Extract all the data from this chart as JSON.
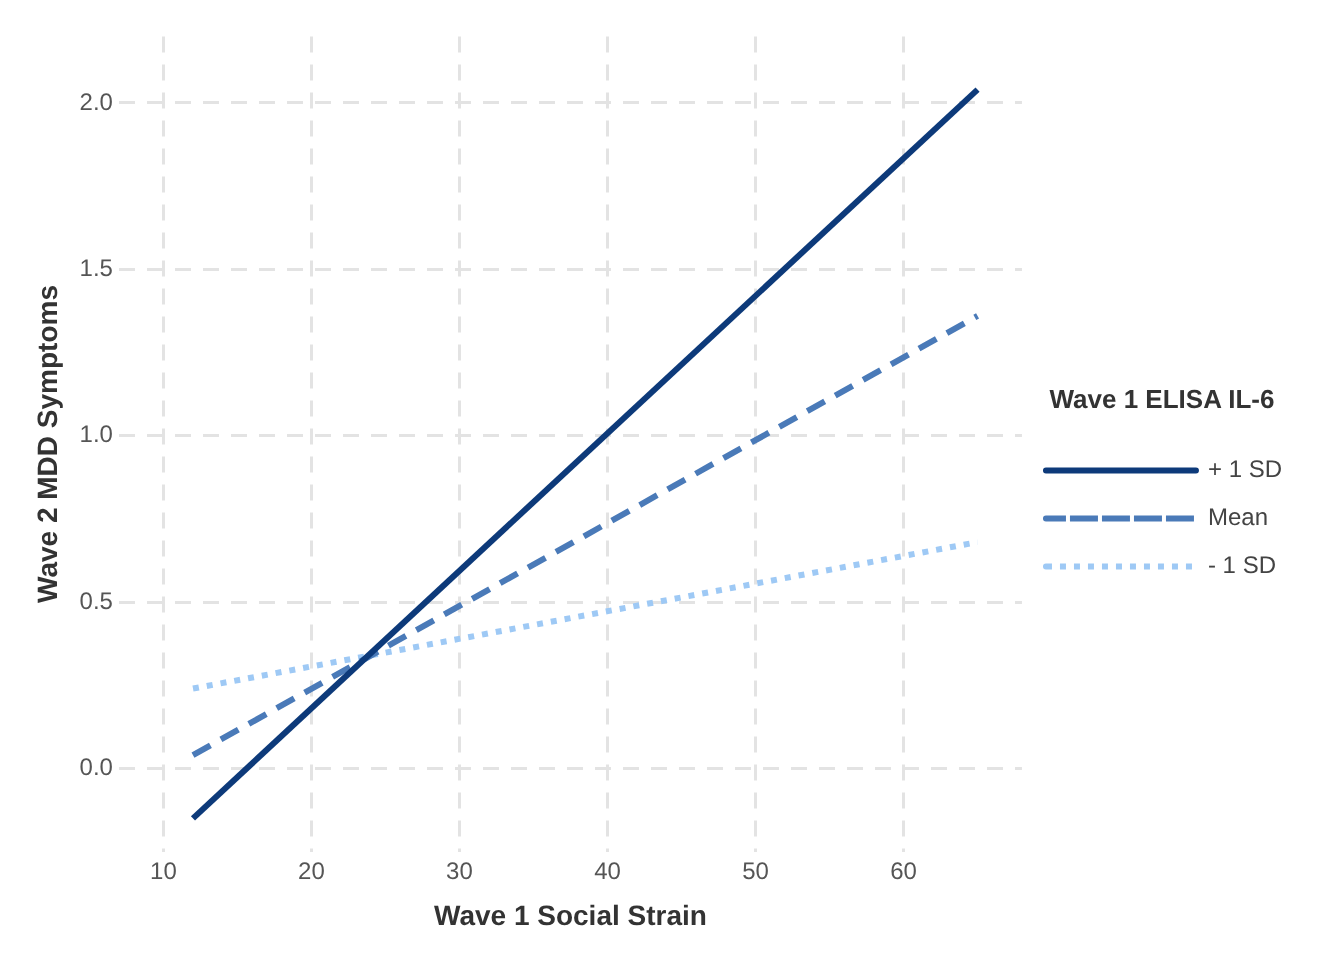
{
  "chart_data": {
    "type": "line",
    "xlabel": "Wave 1 Social Strain",
    "ylabel": "Wave 2 MDD Symptoms",
    "legend_title": "Wave 1 ELISA IL-6",
    "x": [
      12,
      65
    ],
    "series": [
      {
        "name": "+ 1 SD",
        "color": "#0d3a7a",
        "line_style": "solid",
        "values": [
          -0.15,
          2.04
        ]
      },
      {
        "name": "Mean",
        "color": "#4a7ab8",
        "line_style": "dashed",
        "values": [
          0.04,
          1.36
        ]
      },
      {
        "name": "- 1 SD",
        "color": "#9ec9f5",
        "line_style": "dotted",
        "values": [
          0.24,
          0.68
        ]
      }
    ],
    "xlim": [
      7,
      68
    ],
    "xticks": [
      10,
      20,
      30,
      40,
      50,
      60
    ],
    "ylim": [
      -0.25,
      2.2
    ],
    "yticks": [
      {
        "value": 0,
        "label": "0.0"
      },
      {
        "value": 0.5,
        "label": "0.5"
      },
      {
        "value": 1,
        "label": "1.0"
      },
      {
        "value": 1.5,
        "label": "1.5"
      },
      {
        "value": 2,
        "label": "2.0"
      }
    ],
    "grid": true,
    "legend": "right",
    "marker": "none"
  }
}
